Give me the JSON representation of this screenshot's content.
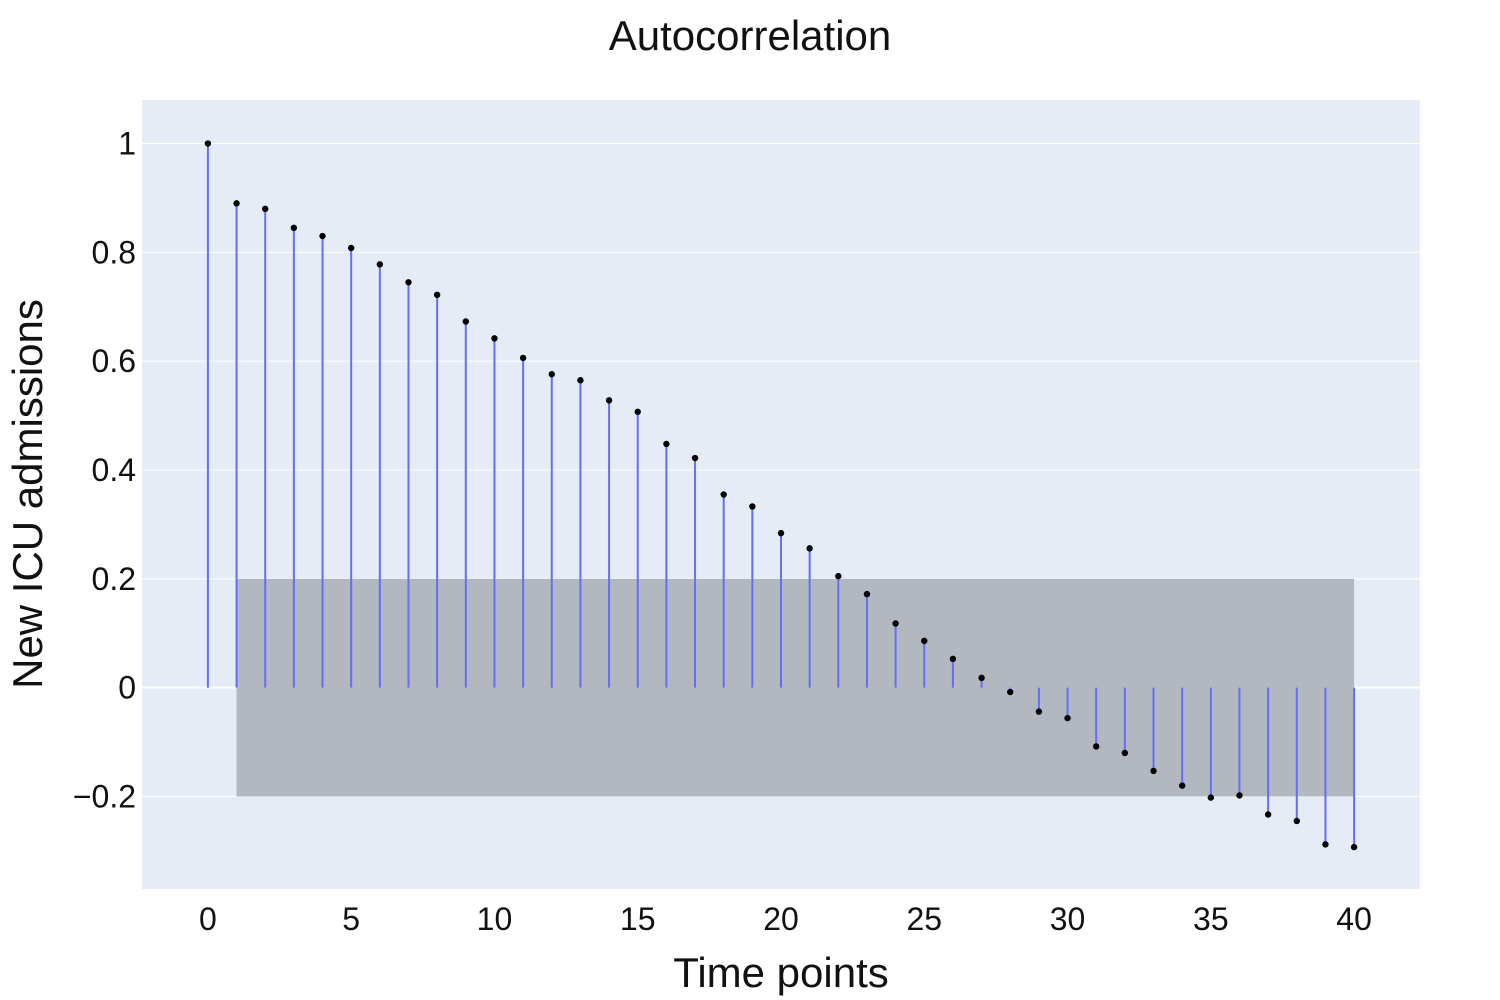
{
  "chart_data": {
    "type": "stem",
    "title": "Autocorrelation",
    "xlabel": "Time points",
    "ylabel": "New ICU admissions",
    "xlim": [
      -2.3,
      42.3
    ],
    "ylim": [
      -0.37,
      1.08
    ],
    "x_ticks": [
      0,
      5,
      10,
      15,
      20,
      25,
      30,
      35,
      40
    ],
    "y_ticks": [
      -0.2,
      0,
      0.2,
      0.4,
      0.6,
      0.8,
      1
    ],
    "y_tick_labels": [
      "−0.2",
      "0",
      "0.2",
      "0.4",
      "0.6",
      "0.8",
      "1"
    ],
    "grid": true,
    "confidence_band": {
      "x": [
        1,
        40
      ],
      "lower": -0.2,
      "upper": 0.2
    },
    "x": [
      0,
      1,
      2,
      3,
      4,
      5,
      6,
      7,
      8,
      9,
      10,
      11,
      12,
      13,
      14,
      15,
      16,
      17,
      18,
      19,
      20,
      21,
      22,
      23,
      24,
      25,
      26,
      27,
      28,
      29,
      30,
      31,
      32,
      33,
      34,
      35,
      36,
      37,
      38,
      39,
      40
    ],
    "values": [
      1.0,
      0.89,
      0.88,
      0.845,
      0.83,
      0.808,
      0.778,
      0.745,
      0.722,
      0.673,
      0.642,
      0.606,
      0.576,
      0.565,
      0.528,
      0.507,
      0.448,
      0.422,
      0.355,
      0.333,
      0.284,
      0.256,
      0.205,
      0.172,
      0.118,
      0.086,
      0.053,
      0.018,
      -0.008,
      -0.044,
      -0.056,
      -0.108,
      -0.12,
      -0.153,
      -0.18,
      -0.202,
      -0.198,
      -0.233,
      -0.245,
      -0.288,
      -0.293
    ],
    "colors": {
      "plot_bg": "#e5ecf6",
      "grid": "#ffffff",
      "stem": "#636efa",
      "marker": "#000000",
      "band": "#b3b8c0"
    }
  }
}
